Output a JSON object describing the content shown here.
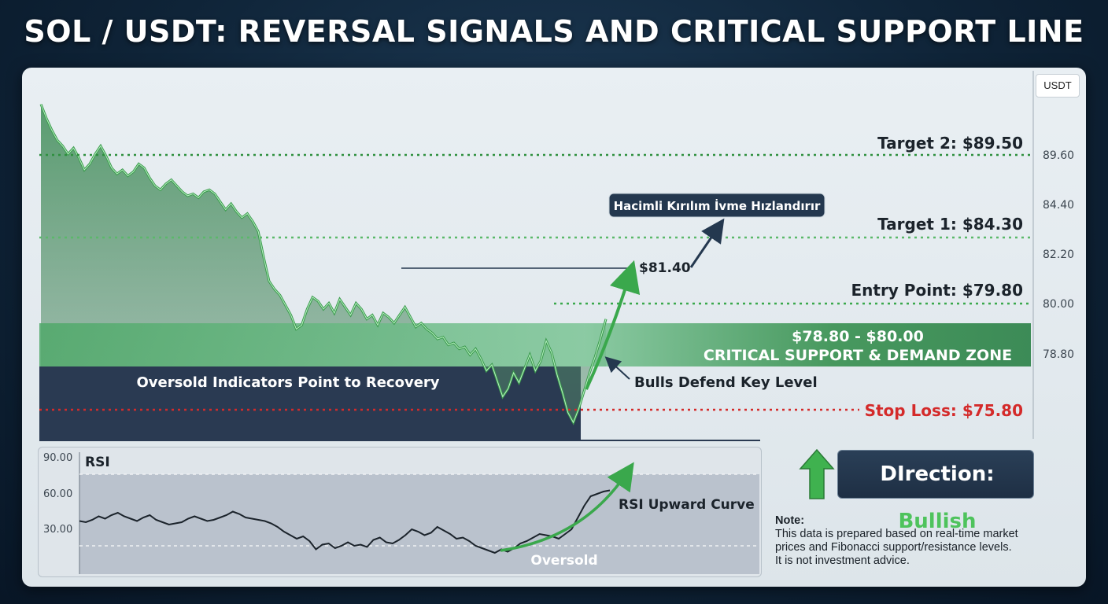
{
  "title": "SOL / USDT: REVERSAL SIGNALS AND CRITICAL SUPPORT LINE",
  "unit_badge": "USDT",
  "colors": {
    "up": "#3a9a4c",
    "stop": "#d42a2a",
    "panel": "#e6ecf0",
    "dark": "#2a3a52"
  },
  "price_axis": {
    "ticks": [
      "89.60",
      "84.40",
      "82.20",
      "80.00",
      "78.80"
    ]
  },
  "levels": {
    "target2": "Target 2: $89.50",
    "target1": "Target 1: $84.30",
    "entry": "Entry Point: $79.80",
    "stop": "Stop Loss: $75.80"
  },
  "zone": {
    "range": "$78.80 - $80.00",
    "label": "CRITICAL SUPPORT & DEMAND ZONE"
  },
  "annotations": {
    "breakout_label": "Hacimli Kırılım İvme Hızlandırır",
    "breakout_price": "$81.40",
    "oversold_recovery": "Oversold Indicators Point to Recovery",
    "bulls_defend": "Bulls Defend Key Level"
  },
  "rsi": {
    "title": "RSI",
    "ticks": [
      "90.00",
      "60.00",
      "30.00"
    ],
    "upward_label": "RSI Upward Curve",
    "oversold_label": "Oversold"
  },
  "direction": {
    "label": "DIrection:",
    "value": "Bullish"
  },
  "note": {
    "label": "Note:",
    "lines": [
      "This data is prepared based on real-time market",
      "prices and Fibonacci support/resistance levels.",
      "It is not investment advice."
    ]
  },
  "chart_data": [
    {
      "type": "line",
      "ylim": [
        75.0,
        92.0
      ],
      "series": [
        {
          "values": [
            91.9,
            91.2,
            90.6,
            90.1,
            89.8,
            89.4,
            89.7,
            89.2,
            88.6,
            88.9,
            89.4,
            89.8,
            89.3,
            88.7,
            88.4,
            88.6,
            88.3,
            88.5,
            88.9,
            88.7,
            88.2,
            87.8,
            87.6,
            87.9,
            88.1,
            87.8,
            87.5,
            87.3,
            87.4,
            87.2,
            87.5,
            87.6,
            87.4,
            87.0,
            86.6,
            86.9,
            86.5,
            86.2,
            86.4,
            86.0,
            85.5,
            84.2,
            83.0,
            82.6,
            82.3,
            81.8,
            81.3,
            80.6,
            80.8,
            81.6,
            82.2,
            82.0,
            81.6,
            81.9,
            81.4,
            82.1,
            81.7,
            81.3,
            81.9,
            81.6,
            81.1,
            81.3,
            80.8,
            81.4,
            81.2,
            80.9,
            81.3,
            81.7,
            81.2,
            80.7,
            80.9,
            80.6,
            80.4,
            80.1,
            80.2,
            79.8,
            79.9,
            79.6,
            79.7,
            79.3,
            79.6,
            79.1,
            78.5,
            78.8,
            78.0,
            77.2,
            77.6,
            78.4,
            77.9,
            78.6,
            79.3,
            78.5,
            79.0,
            80.0,
            79.4,
            78.3,
            77.4,
            76.4,
            75.9,
            76.6,
            77.5,
            78.4,
            79.2,
            80.1,
            81.1
          ],
          "color": "#3a9a4c"
        }
      ]
    },
    {
      "type": "line",
      "ylim": [
        0,
        100
      ],
      "series": [
        {
          "values": [
            45,
            44,
            46,
            49,
            47,
            50,
            52,
            49,
            47,
            45,
            48,
            50,
            46,
            44,
            42,
            43,
            44,
            47,
            49,
            47,
            45,
            46,
            48,
            50,
            53,
            51,
            48,
            47,
            46,
            45,
            43,
            40,
            36,
            33,
            30,
            32,
            28,
            21,
            25,
            26,
            22,
            24,
            27,
            24,
            25,
            23,
            29,
            31,
            27,
            26,
            29,
            33,
            38,
            36,
            33,
            35,
            40,
            37,
            34,
            30,
            31,
            28,
            24,
            22,
            20,
            18,
            21,
            19,
            22,
            26,
            28,
            31,
            34,
            33,
            32,
            30,
            34,
            38,
            48,
            58,
            66,
            68,
            70,
            71
          ],
          "color": "#1b232b"
        }
      ]
    }
  ]
}
